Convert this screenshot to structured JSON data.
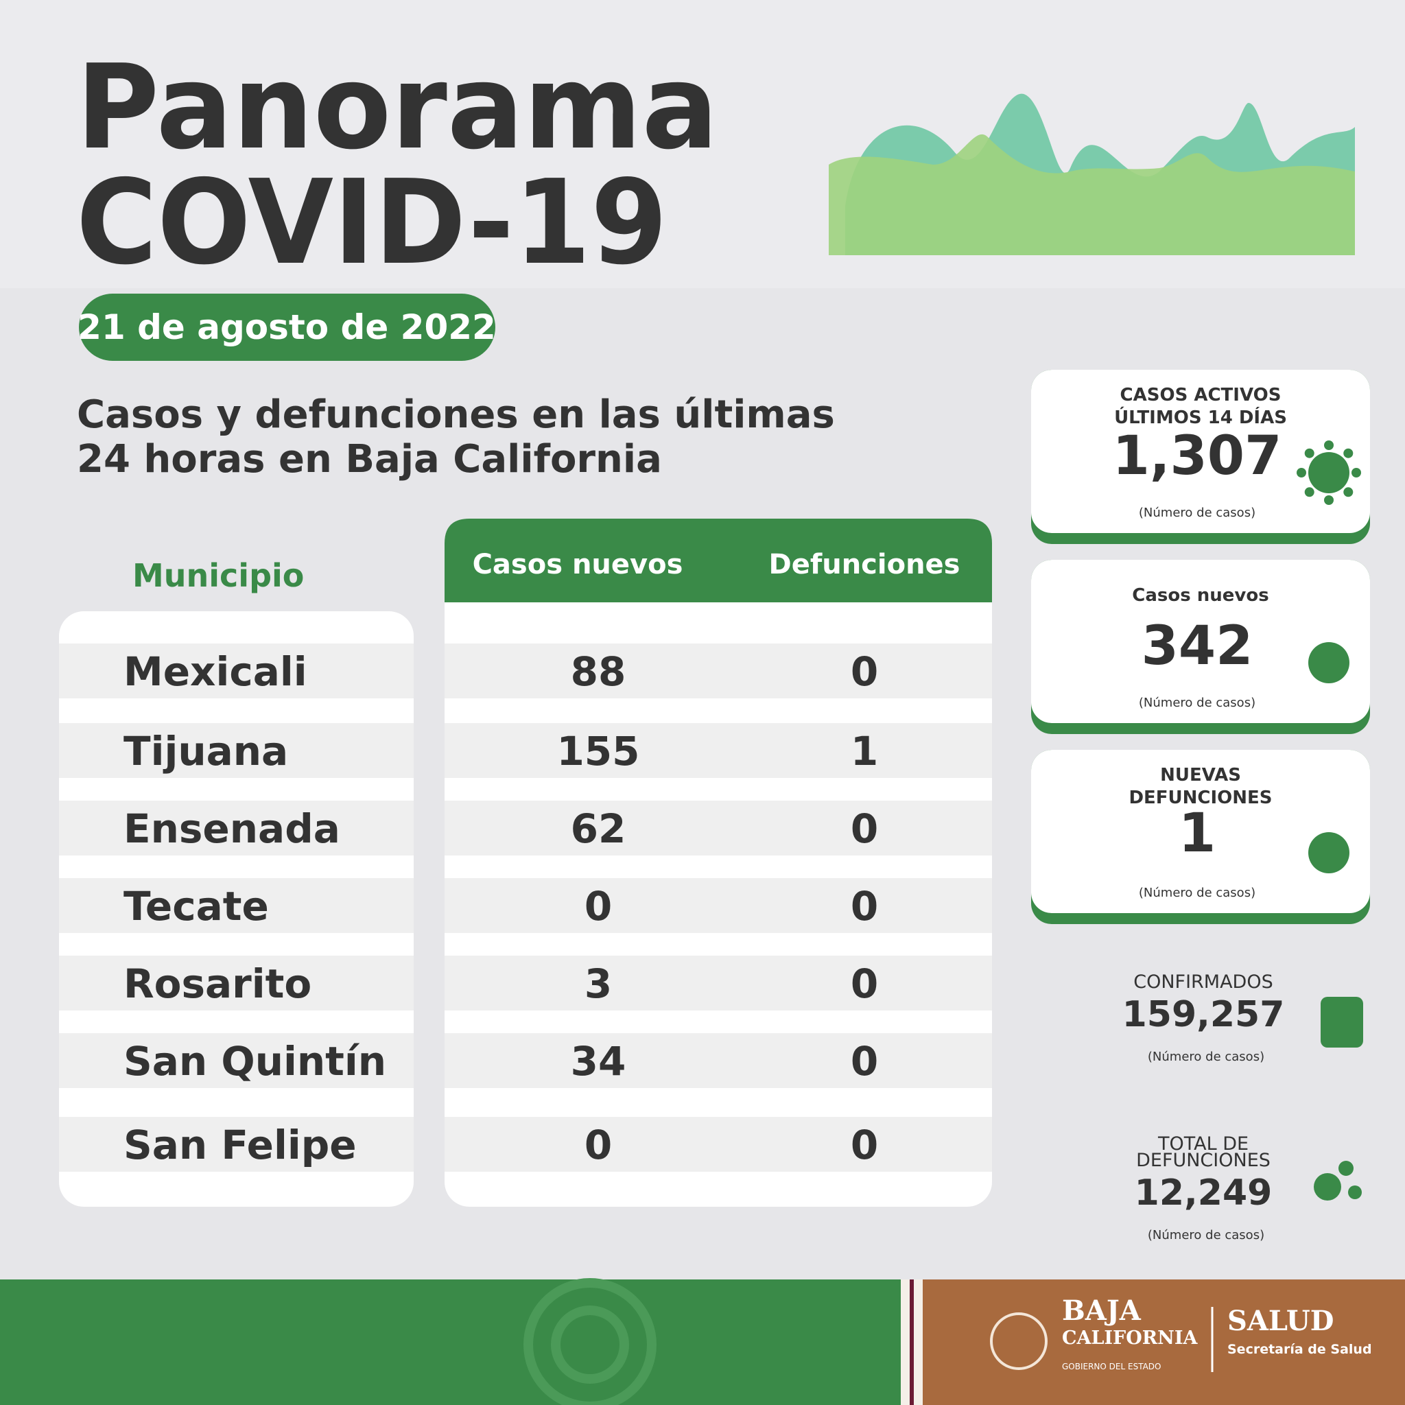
{
  "header": {
    "title_line1": "Panorama",
    "title_line2": "COVID-19",
    "date": "21 de agosto de 2022",
    "subtitle_line1": "Casos y defunciones en las últimas",
    "subtitle_line2": "24 horas en Baja California"
  },
  "table": {
    "headers": [
      "Municipio",
      "Casos nuevos",
      "Defunciones"
    ],
    "rows": [
      [
        "Mexicali",
        88,
        0
      ],
      [
        "Tijuana",
        155,
        1
      ],
      [
        "Ensenada",
        62,
        0
      ],
      [
        "Tecate",
        0,
        0
      ],
      [
        "Rosarito",
        3,
        0
      ],
      [
        "San Quintín",
        34,
        0
      ],
      [
        "San Felipe",
        0,
        0
      ]
    ]
  },
  "cards": [
    {
      "title_lines": [
        "CASOS ACTIVOS",
        "ÚLTIMOS 14 DÍAS"
      ],
      "value": "1,307",
      "note": "(Número de casos)"
    },
    {
      "title_lines": [
        "Casos nuevos"
      ],
      "value": "342",
      "note": "(Número de casos)"
    },
    {
      "title_lines": [
        "NUEVAS",
        "DEFUNCIONES"
      ],
      "value": "1",
      "note": "(Número de casos)"
    }
  ],
  "totals": [
    {
      "title_lines": [
        "CONFIRMADOS"
      ],
      "value": "159,257",
      "note": "(Número de casos)"
    },
    {
      "title_lines": [
        "TOTAL DE",
        "DEFUNCIONES"
      ],
      "value": "12,249",
      "note": "(Número de casos)"
    }
  ],
  "footer": {
    "brand_line1": "BAJA",
    "brand_line2": "CALIFORNIA",
    "brand_line3": "GOBIERNO DEL ESTADO",
    "dept": "SALUD",
    "dept_sub": "Secretaría de Salud"
  }
}
